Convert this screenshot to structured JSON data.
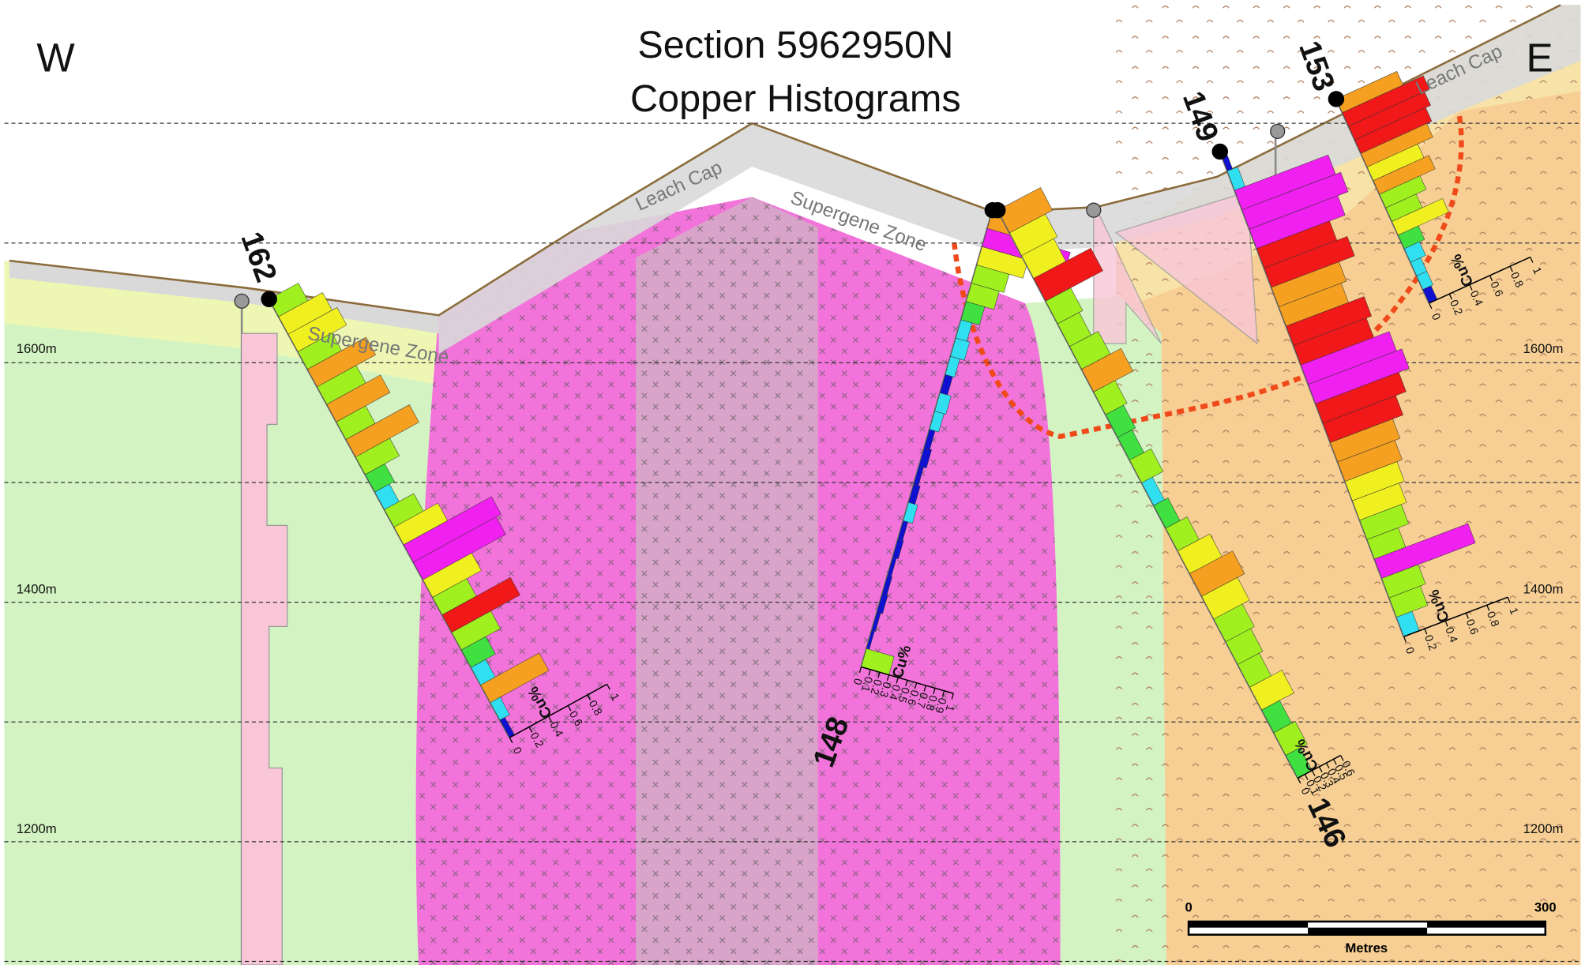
{
  "header": {
    "title": [
      "Section 5962950N",
      "Copper Histograms"
    ],
    "west": "W",
    "east": "E"
  },
  "elevations": [
    "1600m",
    "1400m",
    "1200m"
  ],
  "zones": [
    "Leach Cap",
    "Supergene Zone"
  ],
  "axis_label": "Cu%",
  "holes": [
    {
      "id": "162",
      "ticks": [
        0,
        0.2,
        0.4,
        0.6,
        0.8,
        1
      ],
      "cu": [
        0.3,
        0.45,
        0.5,
        0.35,
        0.6,
        0.4,
        0.55,
        0.3,
        0.65,
        0.35,
        0.2,
        0.15,
        0.3,
        0.45,
        0.9,
        0.85,
        0.5,
        0.35,
        0.7,
        0.4,
        0.25,
        0.15,
        0.6,
        0.1,
        0.05
      ]
    },
    {
      "id": "148",
      "ticks": [
        0,
        0.1,
        0.2,
        0.3,
        0.4,
        0.5,
        0.6,
        0.7,
        0.8,
        0.9,
        1
      ],
      "cu": [
        0.6,
        0.9,
        0.5,
        0.35,
        0.3,
        0.2,
        0.12,
        0.15,
        0.1,
        0.08,
        0.12,
        0.1,
        0.06,
        0.08,
        0.05,
        0.07,
        0.1,
        0.05,
        0.06,
        0.04,
        0.05,
        0.06,
        0.04,
        0.03,
        0.3
      ]
    },
    {
      "id": "146",
      "ticks": [
        0,
        0.1,
        0.2,
        0.3,
        0.4,
        0.5,
        0.6
      ],
      "cu": [
        0.6,
        0.5,
        0.45,
        0.8,
        0.35,
        0.3,
        0.4,
        0.55,
        0.3,
        0.25,
        0.2,
        0.3,
        0.15,
        0.2,
        0.3,
        0.45,
        0.6,
        0.5,
        0.4,
        0.35,
        0.3,
        0.45,
        0.25,
        0.3,
        0.2
      ]
    },
    {
      "id": "149",
      "ticks": [
        0,
        0.2,
        0.4,
        0.6,
        0.8,
        1
      ],
      "cu": [
        0.05,
        0.1,
        0.9,
        0.95,
        0.85,
        0.7,
        0.8,
        0.65,
        0.6,
        0.75,
        0.7,
        0.85,
        0.9,
        0.8,
        0.7,
        0.6,
        0.55,
        0.5,
        0.45,
        0.4,
        0.3,
        0.9,
        0.35,
        0.3,
        0.15
      ]
    },
    {
      "id": "153",
      "ticks": [
        0,
        0.2,
        0.4,
        0.6,
        0.8,
        1
      ],
      "cu": [
        0.6,
        0.8,
        0.75,
        0.7,
        0.65,
        0.5,
        0.55,
        0.4,
        0.3,
        0.5,
        0.2,
        0.15,
        0.1,
        0.1,
        0.08
      ]
    }
  ],
  "scale": {
    "start": "0",
    "end": "300",
    "unit": "Metres"
  }
}
